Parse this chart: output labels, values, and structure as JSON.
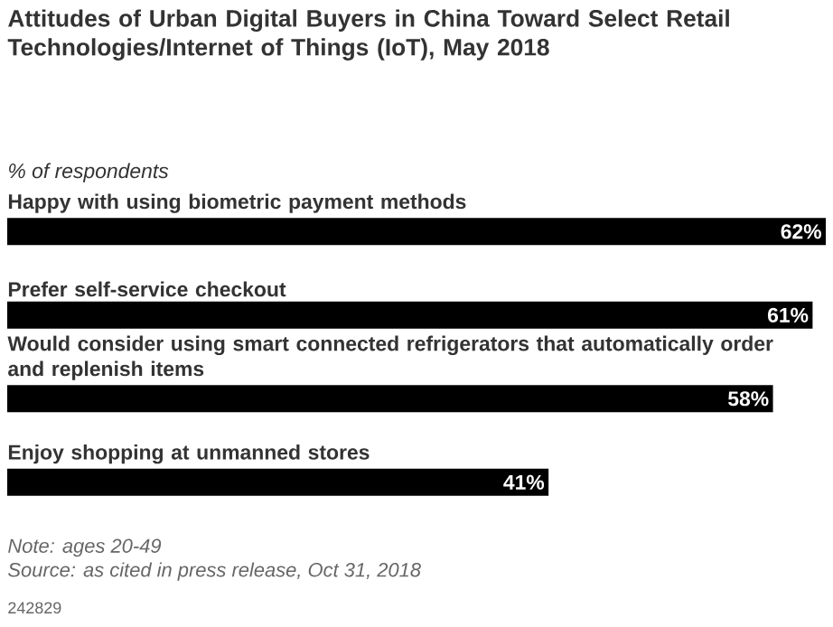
{
  "chart_data": {
    "type": "bar",
    "orientation": "horizontal",
    "title": "Attitudes of Urban Digital Buyers in China Toward Select Retail Technologies/Internet of Things (IoT), May 2018",
    "subtitle": "% of respondents",
    "categories": [
      "Happy with using biometric payment methods",
      "Prefer self-service checkout",
      "Would consider using smart connected refrigerators that automatically order and replenish items",
      "Enjoy shopping at unmanned stores"
    ],
    "values": [
      62,
      61,
      58,
      41
    ],
    "color": "#000000",
    "value_labels": [
      "62%",
      "61%",
      "58%",
      "41%"
    ],
    "annotations": [
      "Note: ages 20-49",
      "Source: as cited in press release, Oct 31, 2018",
      "242829"
    ]
  }
}
